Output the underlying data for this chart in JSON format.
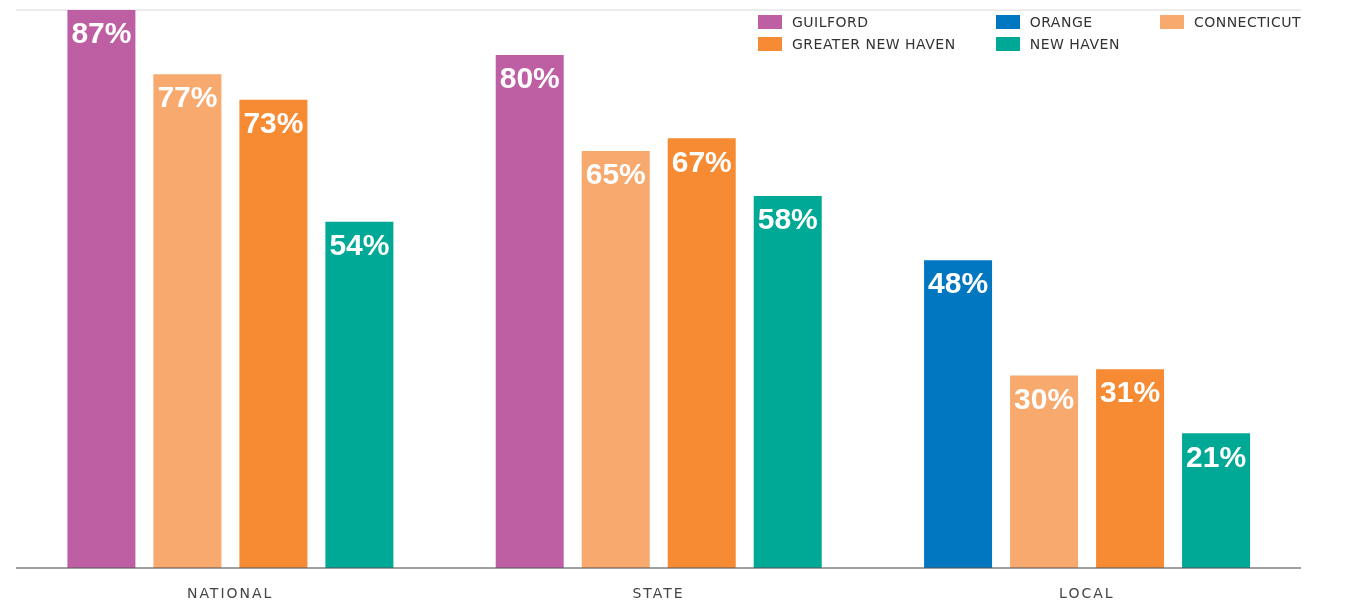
{
  "chart_data": {
    "type": "bar",
    "categories": [
      "NATIONAL",
      "STATE",
      "LOCAL"
    ],
    "series": [
      {
        "name": "GUILFORD",
        "color": "#bf5fa3",
        "values": [
          87,
          80,
          null
        ],
        "value_labels": [
          "87%",
          "80%",
          null
        ]
      },
      {
        "name": "ORANGE",
        "color": "#0077c0",
        "values": [
          null,
          null,
          48
        ],
        "value_labels": [
          null,
          null,
          "48%"
        ]
      },
      {
        "name": "CONNECTICUT",
        "color": "#f8a96e",
        "values": [
          77,
          65,
          30
        ],
        "value_labels": [
          "77%",
          "65%",
          "30%"
        ]
      },
      {
        "name": "GREATER NEW HAVEN",
        "color": "#f68b33",
        "values": [
          73,
          67,
          31
        ],
        "value_labels": [
          "73%",
          "67%",
          "31%"
        ]
      },
      {
        "name": "NEW HAVEN",
        "color": "#00a896",
        "values": [
          54,
          58,
          21
        ],
        "value_labels": [
          "54%",
          "58%",
          "21%"
        ]
      }
    ],
    "grid": "y",
    "tick_labels": "x",
    "legend": "top right"
  }
}
